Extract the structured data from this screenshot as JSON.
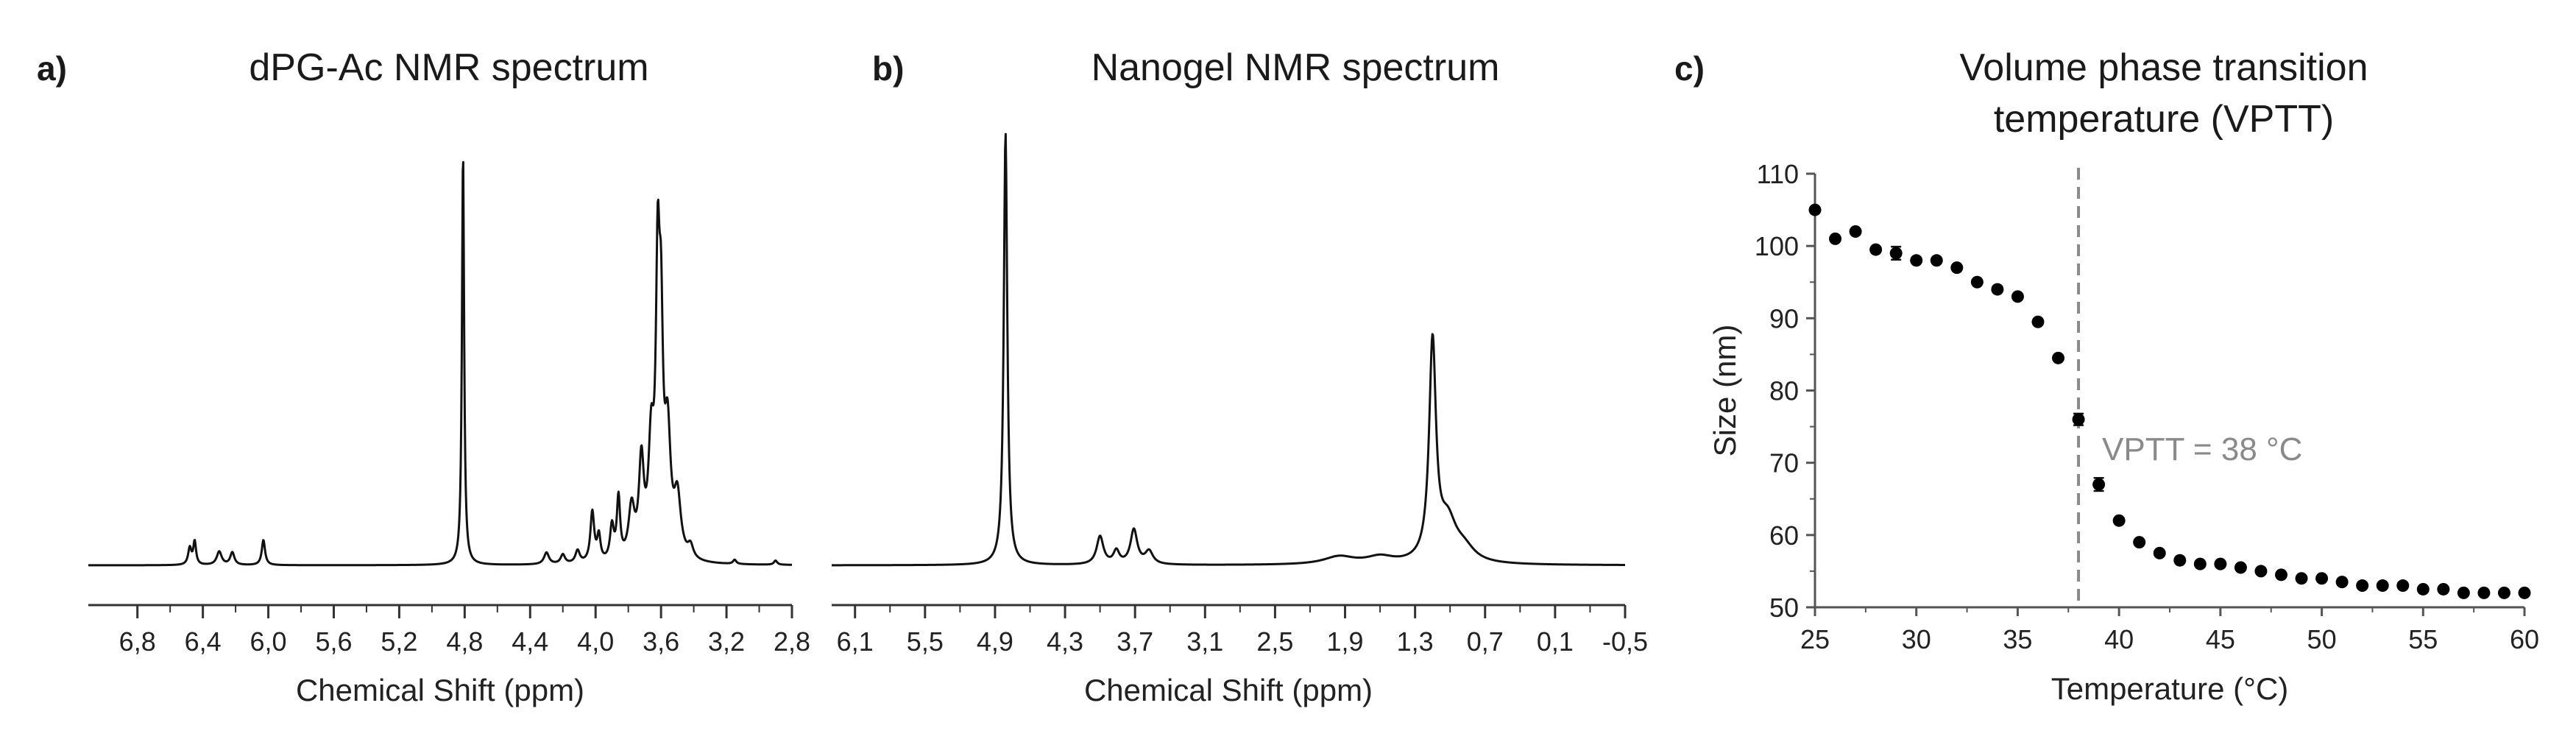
{
  "panels": {
    "a": {
      "letter": "a)",
      "title": "dPG-Ac NMR spectrum"
    },
    "b": {
      "letter": "b)",
      "title": "Nanogel NMR spectrum"
    },
    "c": {
      "letter": "c)",
      "title_line1": "Volume phase transition",
      "title_line2": "temperature (VPTT)"
    }
  },
  "chart_data": [
    {
      "type": "line",
      "title": "dPG-Ac NMR spectrum",
      "xlabel": "Chemical Shift (ppm)",
      "ylabel": "",
      "x_reversed": true,
      "xlim": [
        7.1,
        2.8
      ],
      "xticks": [
        6.8,
        6.4,
        6.0,
        5.6,
        5.2,
        4.8,
        4.4,
        4.0,
        3.6,
        3.2,
        2.8
      ],
      "xtick_labels": [
        "6,8",
        "6,4",
        "6,0",
        "5,6",
        "5,2",
        "4,8",
        "4,4",
        "4,0",
        "3,6",
        "3,2",
        "2,8"
      ],
      "ylim": [
        0,
        1
      ],
      "baseline": 0.0,
      "peaks": [
        {
          "x": 6.48,
          "h": 0.04,
          "w": 0.012
        },
        {
          "x": 6.45,
          "h": 0.055,
          "w": 0.01
        },
        {
          "x": 6.3,
          "h": 0.032,
          "w": 0.018
        },
        {
          "x": 6.22,
          "h": 0.03,
          "w": 0.015
        },
        {
          "x": 6.03,
          "h": 0.06,
          "w": 0.012
        },
        {
          "x": 4.81,
          "h": 0.985,
          "w": 0.008
        },
        {
          "x": 4.3,
          "h": 0.028,
          "w": 0.018
        },
        {
          "x": 4.2,
          "h": 0.022,
          "w": 0.016
        },
        {
          "x": 4.11,
          "h": 0.03,
          "w": 0.016
        },
        {
          "x": 4.02,
          "h": 0.12,
          "w": 0.014
        },
        {
          "x": 3.98,
          "h": 0.06,
          "w": 0.012
        },
        {
          "x": 3.9,
          "h": 0.08,
          "w": 0.014
        },
        {
          "x": 3.86,
          "h": 0.145,
          "w": 0.012
        },
        {
          "x": 3.78,
          "h": 0.12,
          "w": 0.022
        },
        {
          "x": 3.72,
          "h": 0.22,
          "w": 0.018
        },
        {
          "x": 3.66,
          "h": 0.25,
          "w": 0.02
        },
        {
          "x": 3.62,
          "h": 0.62,
          "w": 0.014
        },
        {
          "x": 3.6,
          "h": 0.45,
          "w": 0.014
        },
        {
          "x": 3.56,
          "h": 0.28,
          "w": 0.022
        },
        {
          "x": 3.5,
          "h": 0.14,
          "w": 0.025
        },
        {
          "x": 3.42,
          "h": 0.03,
          "w": 0.02
        },
        {
          "x": 3.15,
          "h": 0.01,
          "w": 0.012
        },
        {
          "x": 2.9,
          "h": 0.01,
          "w": 0.012
        }
      ]
    },
    {
      "type": "line",
      "title": "Nanogel NMR spectrum",
      "xlabel": "Chemical Shift (ppm)",
      "ylabel": "",
      "x_reversed": true,
      "xlim": [
        6.3,
        -0.5
      ],
      "xticks": [
        6.1,
        5.5,
        4.9,
        4.3,
        3.7,
        3.1,
        2.5,
        1.9,
        1.3,
        0.7,
        0.1,
        -0.5
      ],
      "xtick_labels": [
        "6,1",
        "5,5",
        "4,9",
        "4,3",
        "3,7",
        "3,1",
        "2,5",
        "1,9",
        "1,3",
        "0,7",
        "0,1",
        "-0,5"
      ],
      "ylim": [
        0,
        1
      ],
      "baseline": 0.0,
      "peaks": [
        {
          "x": 4.81,
          "h": 1.0,
          "w": 0.018
        },
        {
          "x": 4.0,
          "h": 0.065,
          "w": 0.035
        },
        {
          "x": 3.86,
          "h": 0.03,
          "w": 0.03
        },
        {
          "x": 3.71,
          "h": 0.08,
          "w": 0.035
        },
        {
          "x": 3.58,
          "h": 0.03,
          "w": 0.04
        },
        {
          "x": 1.95,
          "h": 0.018,
          "w": 0.16
        },
        {
          "x": 1.6,
          "h": 0.016,
          "w": 0.14
        },
        {
          "x": 1.15,
          "h": 0.5,
          "w": 0.035
        },
        {
          "x": 1.02,
          "h": 0.09,
          "w": 0.09
        },
        {
          "x": 0.88,
          "h": 0.03,
          "w": 0.11
        }
      ]
    },
    {
      "type": "scatter",
      "title": "Volume phase transition temperature (VPTT)",
      "xlabel": "Temperature (°C)",
      "ylabel": "Size (nm)",
      "xlim": [
        25,
        60
      ],
      "ylim": [
        50,
        110
      ],
      "xticks": [
        25,
        30,
        35,
        40,
        45,
        50,
        55,
        60
      ],
      "yticks": [
        50,
        60,
        70,
        80,
        90,
        100,
        110
      ],
      "x": [
        25,
        26,
        27,
        28,
        29,
        30,
        31,
        32,
        33,
        34,
        35,
        36,
        37,
        38,
        39,
        40,
        41,
        42,
        43,
        44,
        45,
        46,
        47,
        48,
        49,
        50,
        51,
        52,
        53,
        54,
        55,
        56,
        57,
        58,
        59,
        60
      ],
      "y": [
        105,
        101,
        102,
        99.5,
        99,
        98,
        98,
        97,
        95,
        94,
        93,
        89.5,
        84.5,
        76,
        67,
        62,
        59,
        57.5,
        56.5,
        56,
        56,
        55.5,
        55,
        54.5,
        54,
        54,
        53.5,
        53,
        53,
        53,
        52.5,
        52.5,
        52,
        52,
        52,
        52
      ],
      "yerr": [
        0,
        0,
        0,
        0,
        0.9,
        0,
        0,
        0,
        0,
        0,
        0,
        0,
        0,
        0.8,
        0.9,
        0,
        0,
        0,
        0,
        0,
        0,
        0,
        0,
        0,
        0,
        0,
        0,
        0,
        0,
        0,
        0,
        0,
        0,
        0,
        0,
        0
      ],
      "vline": {
        "x": 38,
        "label": "VPTT = 38 °C",
        "color": "#8a8a8a"
      }
    }
  ]
}
